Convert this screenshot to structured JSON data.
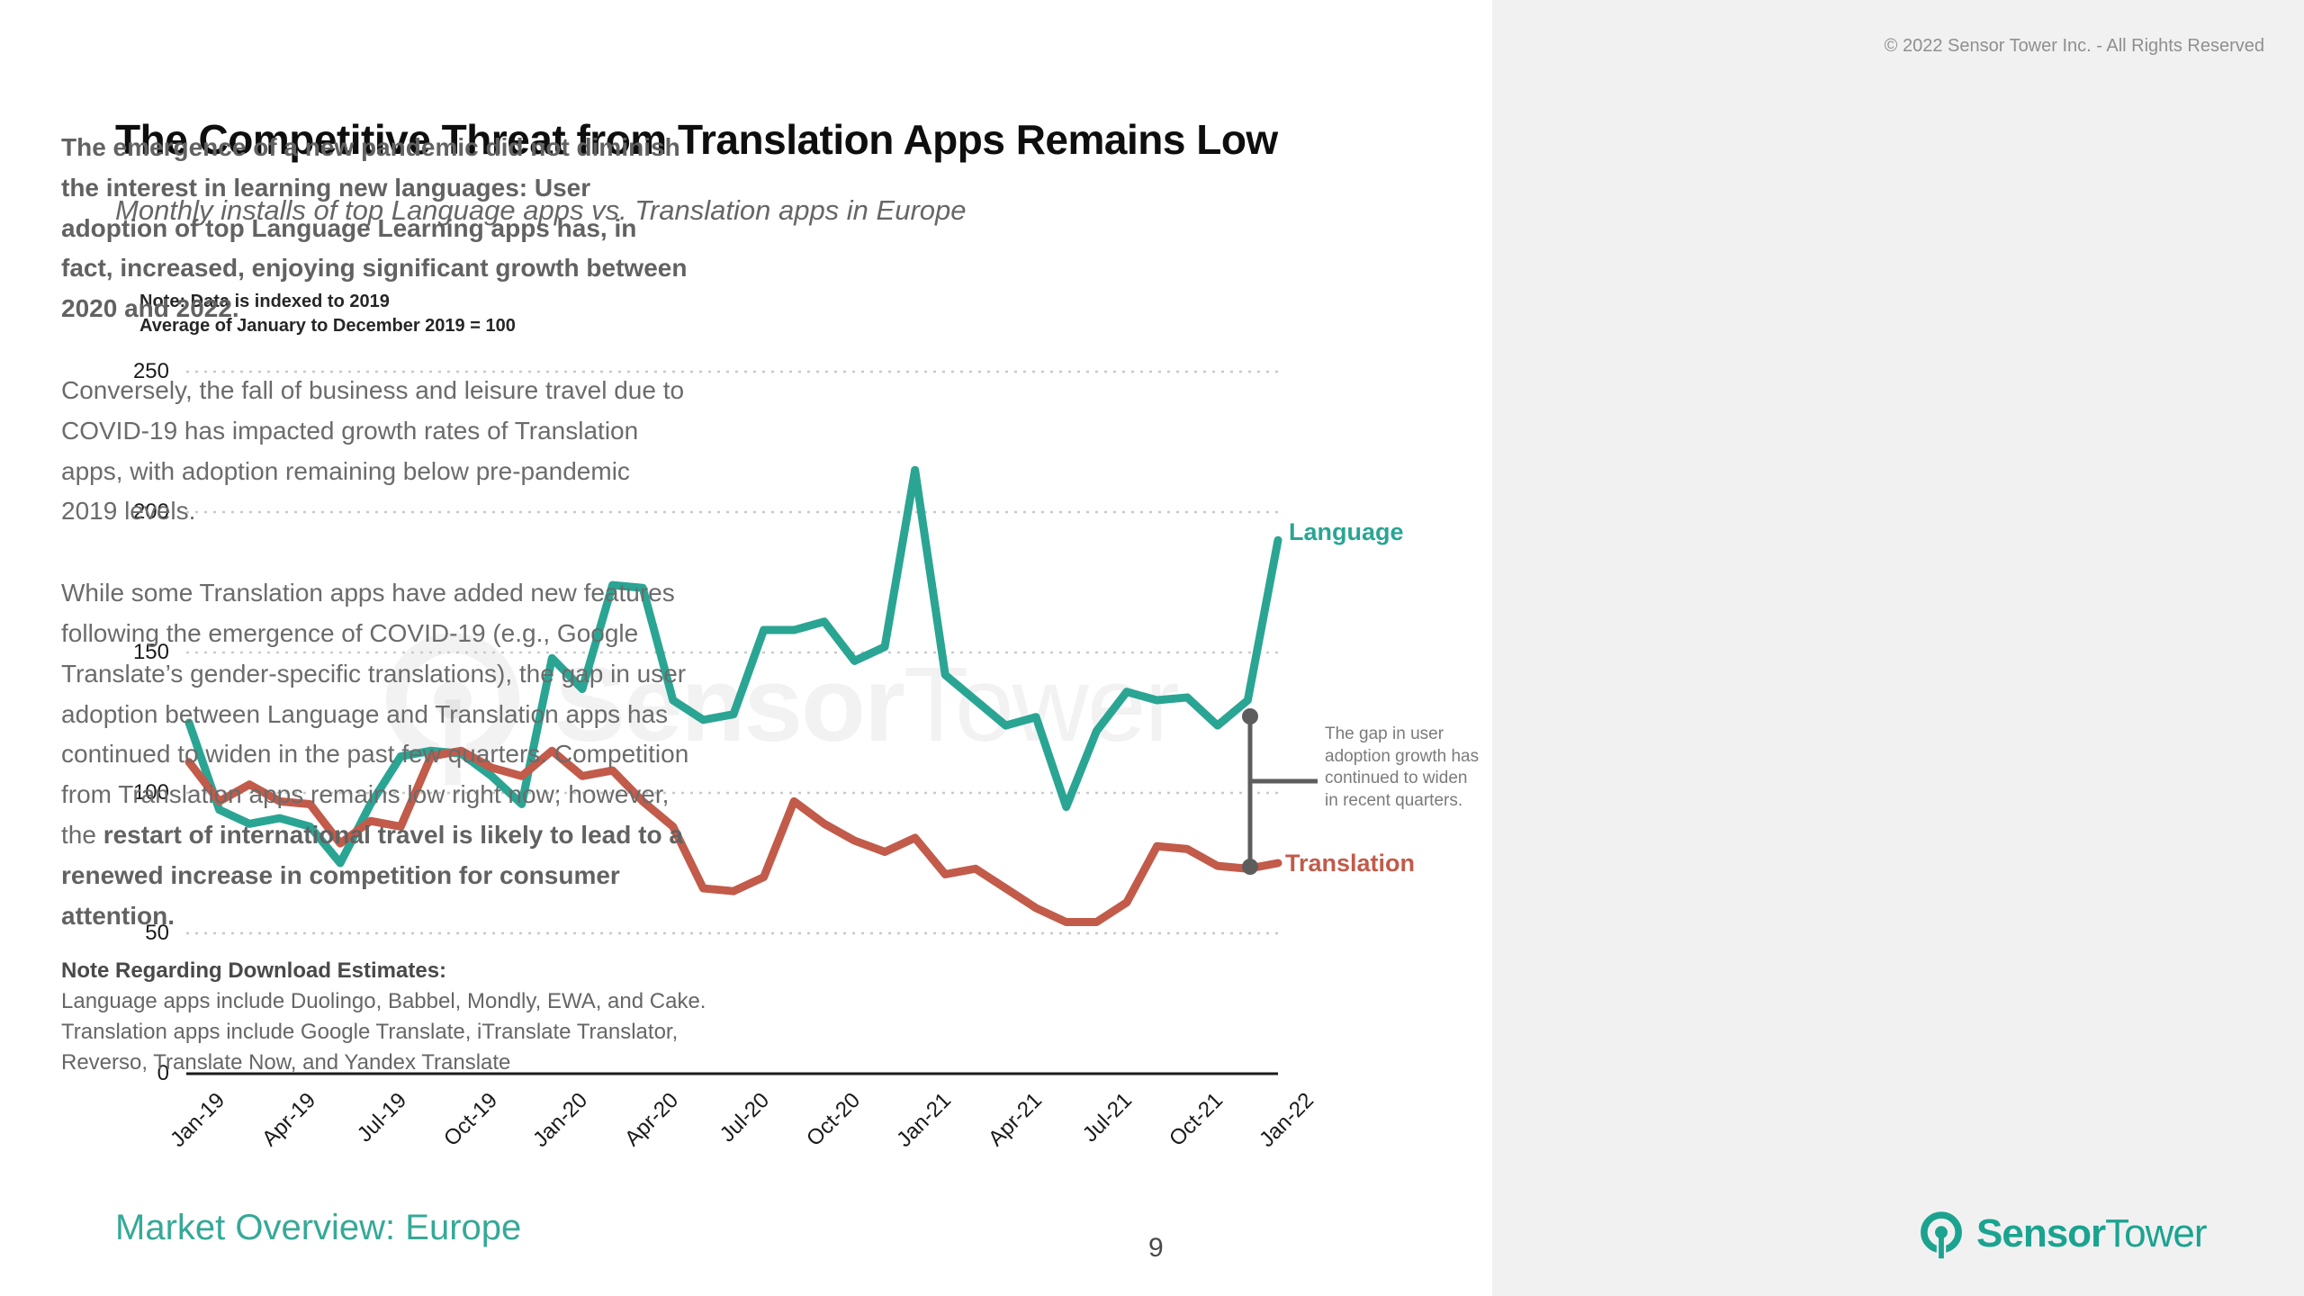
{
  "slide": {
    "copyright": "© 2022 Sensor Tower Inc. - All Rights Reserved",
    "title": "The Competitive Threat from Translation Apps Remains Low",
    "subtitle": "Monthly installs of top Language apps vs. Translation apps in Europe",
    "chart_note_line1": "Note: Data is indexed to 2019",
    "chart_note_line2": "Average of January to December 2019 = 100",
    "annotation": "The gap in user adoption growth has continued to widen in recent quarters.",
    "footer_left": "Market Overview: Europe",
    "page_number": "9",
    "brand_bold": "Sensor",
    "brand_light": "Tower"
  },
  "right_panel": {
    "p1": "The emergence of a new pandemic did not diminish the interest in learning new languages: User adoption of top Language Learning apps has, in fact, increased, enjoying significant growth between 2020 and 2022.",
    "p2": "Conversely, the fall of business and leisure travel due to COVID-19 has impacted growth rates of Translation apps, with adoption remaining below pre-pandemic 2019 levels.",
    "p3_regular": "While some Translation apps have added new features following the emergence of COVID-19 (e.g., Google Translate’s gender-specific translations), the gap in user adoption between Language and Translation apps has continued to widen in the past few quarters. Competition from Translation apps remains low right now; however, the ",
    "p3_bold": "restart of international travel is likely to lead to a renewed increase in competition for consumer attention.",
    "note_title": "Note Regarding Download Estimates:",
    "note_body": "Language apps include Duolingo, Babbel, Mondly, EWA, and Cake. Translation apps include Google Translate, iTranslate Translator, Reverso, Translate Now, and Yandex Translate"
  },
  "chart_data": {
    "type": "line",
    "title": "Monthly installs of top Language apps vs. Translation apps in Europe",
    "x": [
      "Jan-19",
      "Feb-19",
      "Mar-19",
      "Apr-19",
      "May-19",
      "Jun-19",
      "Jul-19",
      "Aug-19",
      "Sep-19",
      "Oct-19",
      "Nov-19",
      "Dec-19",
      "Jan-20",
      "Feb-20",
      "Mar-20",
      "Apr-20",
      "May-20",
      "Jun-20",
      "Jul-20",
      "Aug-20",
      "Sep-20",
      "Oct-20",
      "Nov-20",
      "Dec-20",
      "Jan-21",
      "Feb-21",
      "Mar-21",
      "Apr-21",
      "May-21",
      "Jun-21",
      "Jul-21",
      "Aug-21",
      "Sep-21",
      "Oct-21",
      "Nov-21",
      "Dec-21",
      "Jan-22"
    ],
    "x_tick_labels": [
      "Jan-19",
      "Apr-19",
      "Jul-19",
      "Oct-19",
      "Jan-20",
      "Apr-20",
      "Jul-20",
      "Oct-20",
      "Jan-21",
      "Apr-21",
      "Jul-21",
      "Oct-21",
      "Jan-22"
    ],
    "series": [
      {
        "name": "Language",
        "color": "#2aa593",
        "values": [
          125,
          94,
          89,
          91,
          88,
          75,
          96,
          113,
          115,
          114,
          106,
          96,
          148,
          137,
          174,
          173,
          133,
          126,
          128,
          158,
          158,
          161,
          147,
          152,
          215,
          142,
          133,
          124,
          127,
          95,
          122,
          136,
          133,
          134,
          124,
          133,
          190
        ]
      },
      {
        "name": "Translation",
        "color": "#c25b4a",
        "values": [
          111,
          97,
          103,
          97,
          96,
          82,
          90,
          88,
          113,
          115,
          109,
          106,
          115,
          106,
          108,
          97,
          88,
          66,
          65,
          70,
          97,
          89,
          83,
          79,
          84,
          71,
          73,
          66,
          59,
          54,
          54,
          61,
          81,
          80,
          74,
          73,
          75
        ]
      }
    ],
    "ylim": [
      0,
      250
    ],
    "yticks": [
      0,
      50,
      100,
      150,
      200,
      250
    ],
    "grid": "horizontal-dotted",
    "legend_position": "line-end-labels",
    "annotation_gap_from": 133,
    "annotation_gap_to": 73
  }
}
